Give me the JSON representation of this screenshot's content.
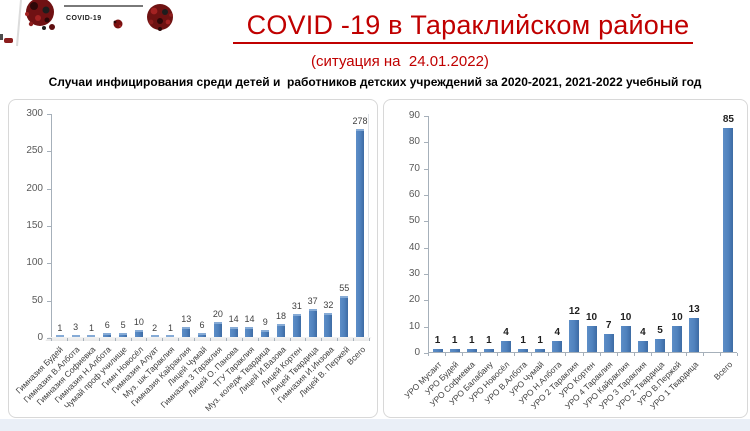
{
  "header": {
    "badge_label": "COVID-19",
    "title": "COVID -19 в Тараклийском районе",
    "subtitle": "(ситуация на  24.01.2022)",
    "description": "Случаи инфицирования среди детей и  работников детских учреждений за 2020-2021, 2021-2022 учебный год"
  },
  "colors": {
    "accent_red": "#c00000",
    "bar_blue": "#4f81bd",
    "axis_gray": "#a6b0ba",
    "tick_label_gray": "#595959"
  },
  "icons": [
    "coronavirus-icon"
  ],
  "chart_data": [
    {
      "type": "bar",
      "style": "3d-column",
      "grid": false,
      "legend": "none",
      "ylim": [
        0,
        300
      ],
      "ytick_step": 50,
      "categories": [
        "Гимназия Будей",
        "Гимназия В.Албота",
        "Гимназия Софиевка",
        "Гимназия Н.Албота",
        "Чумай проф училище",
        "Гимн Новосёл",
        "Гимназия Алуат",
        "Муз. шк.Тараклия",
        "Гимназия Кайраклия",
        "Лицей Чумай",
        "Гимназия 3 Тараклия",
        "Лицей О. Панова",
        "ТГУ Тараклия",
        "Муз. коледж Твардица",
        "Лицей И.Вазова",
        "Лицей Кортен",
        "Лицей Твардица",
        "Гимназия И.Инзова",
        "Лицей В. Пержей",
        "Всего"
      ],
      "values": [
        1,
        3,
        1,
        6,
        5,
        10,
        2,
        1,
        13,
        6,
        20,
        14,
        14,
        9,
        18,
        31,
        37,
        32,
        55,
        278
      ]
    },
    {
      "type": "bar",
      "style": "flat-column",
      "grid": false,
      "legend": "none",
      "ylim": [
        0,
        90
      ],
      "ytick_step": 10,
      "spacer_before_last": true,
      "categories": [
        "УРО Мусаит",
        "УРО Будей",
        "УРО Софиевка",
        "УРО Балабану",
        "УРО Новосёл",
        "УРО В.Албота",
        "УРО Чумай",
        "УРО Н.Албота",
        "УРО 2 Тараклия",
        "УРО Кортен",
        "УРО 4 Тараклия",
        "УРО Кайраклия",
        "УРО 3 Тараклия",
        "УРО 2  Твардица",
        "УРО В.Пержей",
        "УРО 1 Твардица",
        "Всего"
      ],
      "values": [
        1,
        1,
        1,
        1,
        4,
        1,
        1,
        4,
        12,
        10,
        7,
        10,
        4,
        5,
        10,
        13,
        85
      ]
    }
  ]
}
